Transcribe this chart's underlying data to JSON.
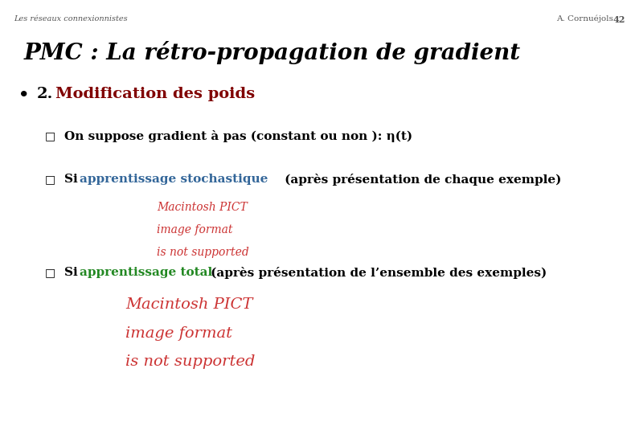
{
  "bg_color": "#ffffff",
  "header_text": "Les réseaux connexionnistes",
  "page_number": "42",
  "author": "A. Cornuéjols",
  "title": "PMC : La rétro-propagation de gradient",
  "title_color": "#000000",
  "header_color": "#555555",
  "bullet_label_color": "#800000",
  "item2_colored_color": "#336699",
  "item3_colored_color": "#228822",
  "pict_color": "#cc3333",
  "item_color": "#000000"
}
